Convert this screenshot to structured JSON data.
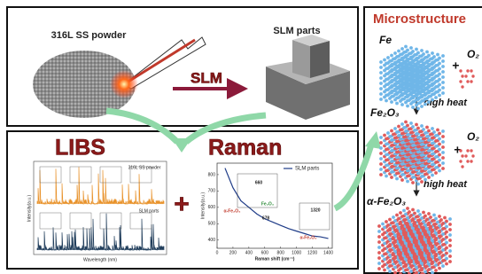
{
  "top": {
    "powder_label": "316L SS powder",
    "parts_label": "SLM parts",
    "process": "SLM"
  },
  "libs": {
    "title": "LIBS",
    "legend": [
      "316L SS powder",
      "SLM parts"
    ],
    "xlabel": "Wavelength (nm)",
    "ylabel": "Intensity(a.u.)"
  },
  "plus": "+",
  "chart_data": {
    "type": "line",
    "title": "Raman",
    "x": [
      100,
      200,
      300,
      400,
      500,
      600,
      700,
      800,
      900,
      1000,
      1100,
      1200,
      1300,
      1400
    ],
    "series": [
      {
        "name": "SLM parts",
        "color": "#1f3c88",
        "values": [
          840,
          720,
          640,
          600,
          560,
          530,
          510,
          490,
          470,
          455,
          440,
          425,
          420,
          410
        ]
      }
    ],
    "xlabel": "Raman shift (cm⁻¹)",
    "ylabel": "Intensity(a.u.)",
    "xlim": [
      0,
      1450
    ],
    "ylim": [
      350,
      870
    ],
    "xticks": [
      0,
      200,
      400,
      600,
      800,
      1000,
      1200,
      1400
    ],
    "yticks": [
      400,
      500,
      600,
      700,
      800
    ],
    "annotations": [
      "660",
      "α-Fe₂O₃",
      "Fe₂O₃",
      "678",
      "1320",
      "α-Fe₂O₃"
    ]
  },
  "microstructure": {
    "title": "Microstructure",
    "fe": "Fe",
    "o2_1": "O₂",
    "plus_1": "+",
    "heat_1": "high heat",
    "fe2o3": "Fe₂O₃",
    "o2_2": "O₂",
    "plus_2": "+",
    "heat_2": "high heat",
    "alpha": "α-Fe₂O₃"
  }
}
